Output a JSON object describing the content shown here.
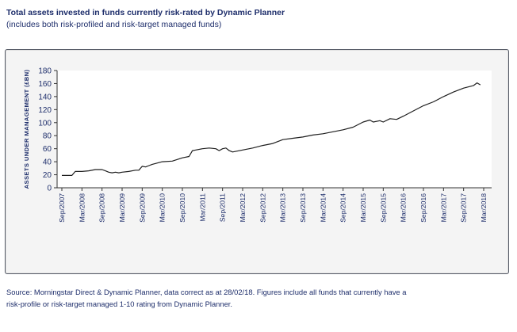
{
  "header": {
    "title": "Total assets invested in funds currently risk-rated by Dynamic Planner",
    "subtitle": "(includes both risk-profiled and risk-target managed funds)"
  },
  "footer": {
    "source_line1": "Source: Morningstar Direct & Dynamic Planner, data correct as at 28/02/18. Figures include all funds that currently have a",
    "source_line2": "risk-profile or risk-target managed 1-10 rating from Dynamic Planner."
  },
  "colors": {
    "line": "#1e1e1e",
    "axis": "#333333",
    "text": "#1e2e6b",
    "frame": "#555a66",
    "frame_fill": "#f4f4f4",
    "plot_fill": "#ffffff"
  },
  "chart_data": {
    "type": "line",
    "title": "Total assets invested in funds currently risk-rated by Dynamic Planner",
    "subtitle": "(includes both risk-profiled and risk-target managed funds)",
    "xlabel": "",
    "ylabel": "ASSETS UNDER MANAGEMENT (£BN)",
    "ylim": [
      0,
      180
    ],
    "yticks": [
      0,
      20,
      40,
      60,
      80,
      100,
      120,
      140,
      160,
      180
    ],
    "xticks": [
      "Sep/2007",
      "Mar/2008",
      "Sep/2008",
      "Mar/2009",
      "Sep/2009",
      "Mar/2010",
      "Sep/2010",
      "Mar/2011",
      "Sep/2011",
      "Mar/2012",
      "Sep/2012",
      "Mar/2013",
      "Sep/2013",
      "Mar/2014",
      "Sep/2014",
      "Mar/2015",
      "Sep/2015",
      "Mar/2016",
      "Sep/2016",
      "Mar/2017",
      "Sep/2017",
      "Mar/2018"
    ],
    "grid": false,
    "legend": "none",
    "series": [
      {
        "values": [
          [
            "Sep/2007",
            19
          ],
          [
            "Dec/2007",
            19
          ],
          [
            "Jan/2008",
            25
          ],
          [
            "Mar/2008",
            25
          ],
          [
            "May/2008",
            26
          ],
          [
            "Jul/2008",
            28
          ],
          [
            "Sep/2008",
            28
          ],
          [
            "Oct/2008",
            26
          ],
          [
            "Nov/2008",
            24
          ],
          [
            "Dec/2008",
            23
          ],
          [
            "Jan/2009",
            24
          ],
          [
            "Feb/2009",
            23
          ],
          [
            "Mar/2009",
            24
          ],
          [
            "May/2009",
            25
          ],
          [
            "Jul/2009",
            27
          ],
          [
            "Aug/2009",
            27
          ],
          [
            "Sep/2009",
            33
          ],
          [
            "Oct/2009",
            32
          ],
          [
            "Nov/2009",
            34
          ],
          [
            "Dec/2009",
            36
          ],
          [
            "Mar/2010",
            40
          ],
          [
            "Jun/2010",
            41
          ],
          [
            "Sep/2010",
            46
          ],
          [
            "Nov/2010",
            48
          ],
          [
            "Dec/2010",
            57
          ],
          [
            "Jan/2011",
            58
          ],
          [
            "Mar/2011",
            60
          ],
          [
            "May/2011",
            61
          ],
          [
            "Jul/2011",
            60
          ],
          [
            "Aug/2011",
            57
          ],
          [
            "Sep/2011",
            60
          ],
          [
            "Oct/2011",
            61
          ],
          [
            "Nov/2011",
            57
          ],
          [
            "Dec/2011",
            55
          ],
          [
            "Mar/2012",
            58
          ],
          [
            "Jun/2012",
            61
          ],
          [
            "Sep/2012",
            65
          ],
          [
            "Dec/2012",
            68
          ],
          [
            "Mar/2013",
            74
          ],
          [
            "Jun/2013",
            76
          ],
          [
            "Sep/2013",
            78
          ],
          [
            "Dec/2013",
            81
          ],
          [
            "Mar/2014",
            83
          ],
          [
            "Jun/2014",
            86
          ],
          [
            "Sep/2014",
            89
          ],
          [
            "Dec/2014",
            93
          ],
          [
            "Mar/2015",
            101
          ],
          [
            "May/2015",
            104
          ],
          [
            "Jun/2015",
            101
          ],
          [
            "Aug/2015",
            103
          ],
          [
            "Sep/2015",
            101
          ],
          [
            "Nov/2015",
            106
          ],
          [
            "Jan/2016",
            105
          ],
          [
            "Mar/2016",
            110
          ],
          [
            "Jun/2016",
            118
          ],
          [
            "Sep/2016",
            126
          ],
          [
            "Dec/2016",
            132
          ],
          [
            "Mar/2017",
            140
          ],
          [
            "Jun/2017",
            147
          ],
          [
            "Sep/2017",
            153
          ],
          [
            "Dec/2017",
            157
          ],
          [
            "Jan/2018",
            161
          ],
          [
            "Feb/2018",
            158
          ]
        ]
      }
    ]
  }
}
